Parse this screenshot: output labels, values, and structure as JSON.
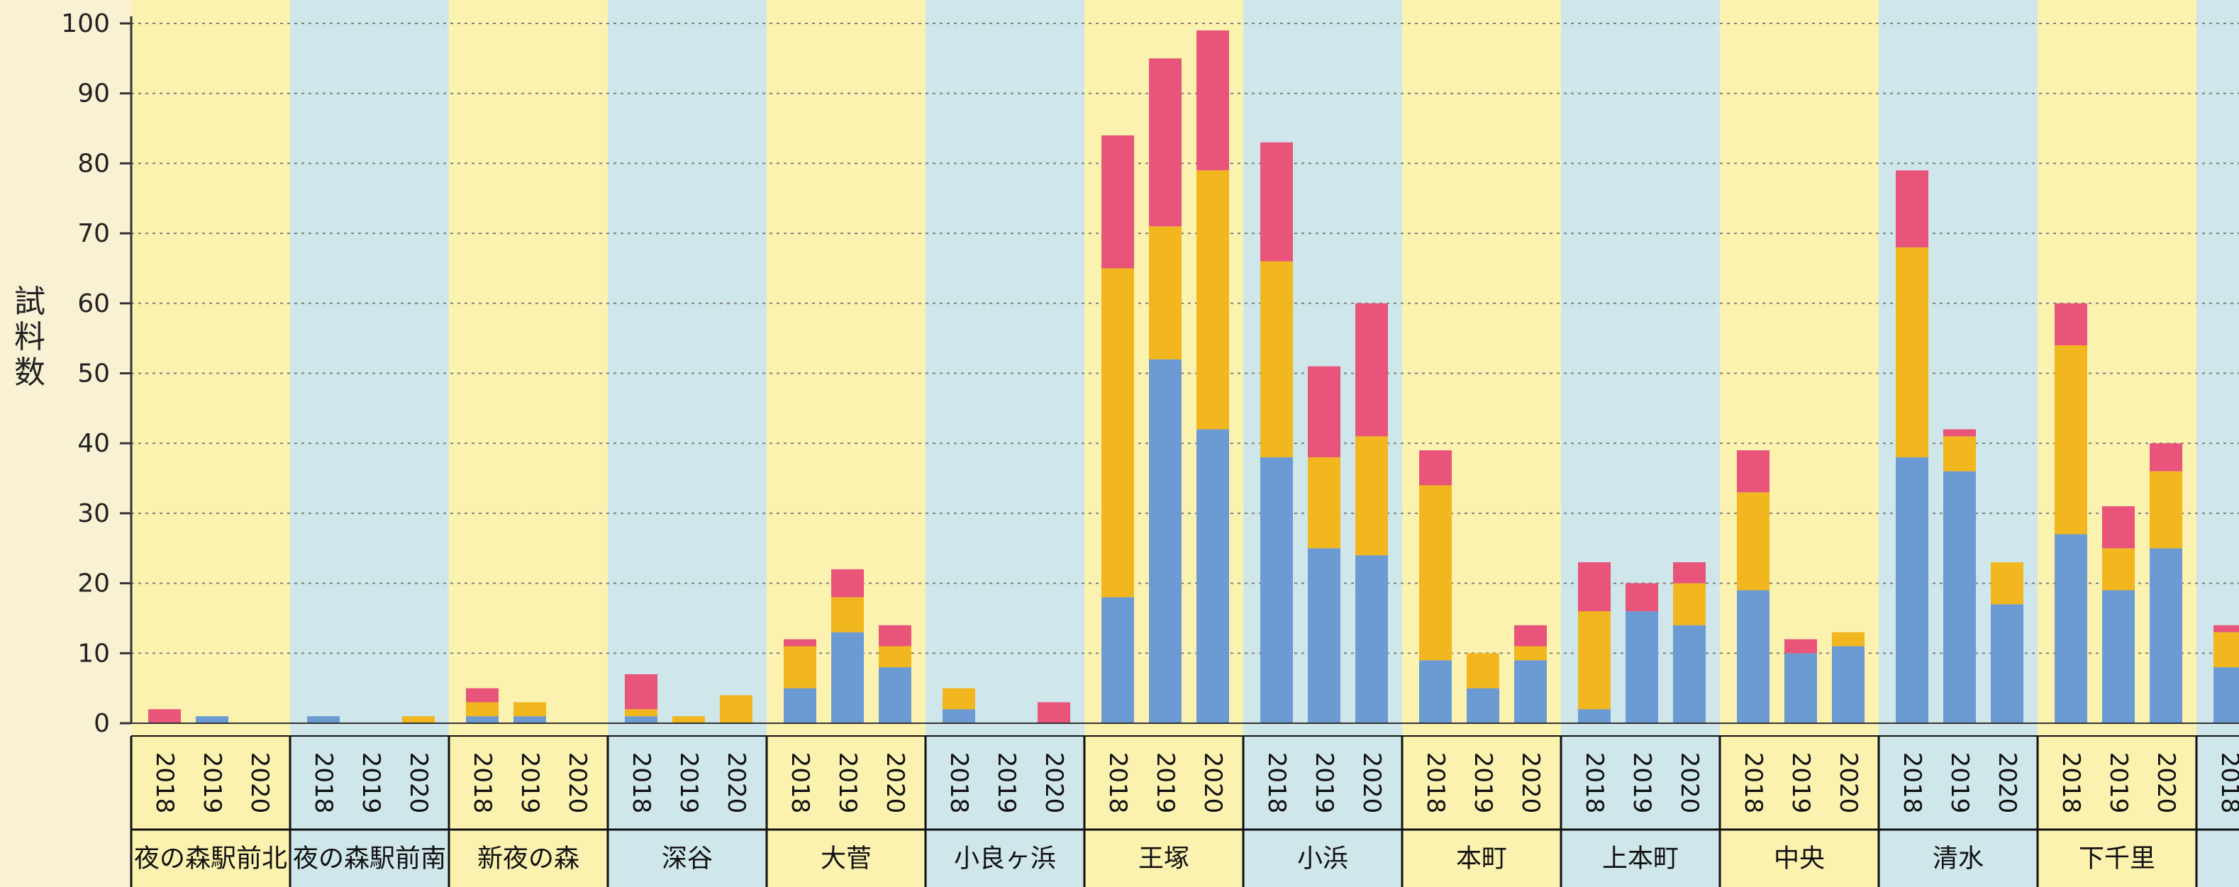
{
  "chart_data": {
    "type": "bar",
    "stacked": true,
    "ylabel": "試料数",
    "ylim": [
      0,
      100
    ],
    "yticks": [
      0,
      10,
      20,
      30,
      40,
      50,
      60,
      70,
      80,
      90,
      100
    ],
    "grid": true,
    "years": [
      "2018",
      "2019",
      "2020"
    ],
    "colors": [
      "#6b9bd2",
      "#f2b61e",
      "#e8547a"
    ],
    "band_colors": [
      "#fbf2b0",
      "#cfe6ea"
    ],
    "groups": [
      {
        "name": "夜の森駅前北",
        "stacks": [
          [
            0,
            0,
            2
          ],
          [
            1,
            0,
            0
          ],
          [
            0,
            0,
            0
          ]
        ]
      },
      {
        "name": "夜の森駅前南",
        "stacks": [
          [
            1,
            0,
            0
          ],
          [
            0,
            0,
            0
          ],
          [
            0,
            1,
            0
          ]
        ]
      },
      {
        "name": "新夜の森",
        "stacks": [
          [
            1,
            2,
            2
          ],
          [
            1,
            2,
            0
          ],
          [
            0,
            0,
            0
          ]
        ]
      },
      {
        "name": "深谷",
        "stacks": [
          [
            1,
            1,
            5
          ],
          [
            0,
            1,
            0
          ],
          [
            0,
            4,
            0
          ]
        ]
      },
      {
        "name": "大菅",
        "stacks": [
          [
            5,
            6,
            1
          ],
          [
            13,
            5,
            4
          ],
          [
            8,
            3,
            3
          ]
        ]
      },
      {
        "name": "小良ヶ浜",
        "stacks": [
          [
            2,
            3,
            0
          ],
          [
            0,
            0,
            0
          ],
          [
            0,
            0,
            3
          ]
        ]
      },
      {
        "name": "王塚",
        "stacks": [
          [
            18,
            47,
            19
          ],
          [
            52,
            19,
            24
          ],
          [
            42,
            37,
            20
          ]
        ]
      },
      {
        "name": "小浜",
        "stacks": [
          [
            38,
            28,
            17
          ],
          [
            25,
            13,
            13
          ],
          [
            24,
            17,
            19
          ]
        ]
      },
      {
        "name": "本町",
        "stacks": [
          [
            9,
            25,
            5
          ],
          [
            5,
            5,
            0
          ],
          [
            9,
            2,
            3
          ]
        ]
      },
      {
        "name": "上本町",
        "stacks": [
          [
            2,
            14,
            7
          ],
          [
            16,
            0,
            4
          ],
          [
            14,
            6,
            3
          ]
        ]
      },
      {
        "name": "中央",
        "stacks": [
          [
            19,
            14,
            6
          ],
          [
            10,
            0,
            2
          ],
          [
            11,
            2,
            0
          ]
        ]
      },
      {
        "name": "清水",
        "stacks": [
          [
            38,
            30,
            11
          ],
          [
            36,
            5,
            1
          ],
          [
            17,
            6,
            0
          ]
        ]
      },
      {
        "name": "下千里",
        "stacks": [
          [
            27,
            27,
            6
          ],
          [
            19,
            6,
            6
          ],
          [
            25,
            11,
            4
          ]
        ]
      },
      {
        "name": "",
        "stacks": [
          [
            8,
            5,
            1
          ]
        ],
        "partial": true
      }
    ]
  }
}
